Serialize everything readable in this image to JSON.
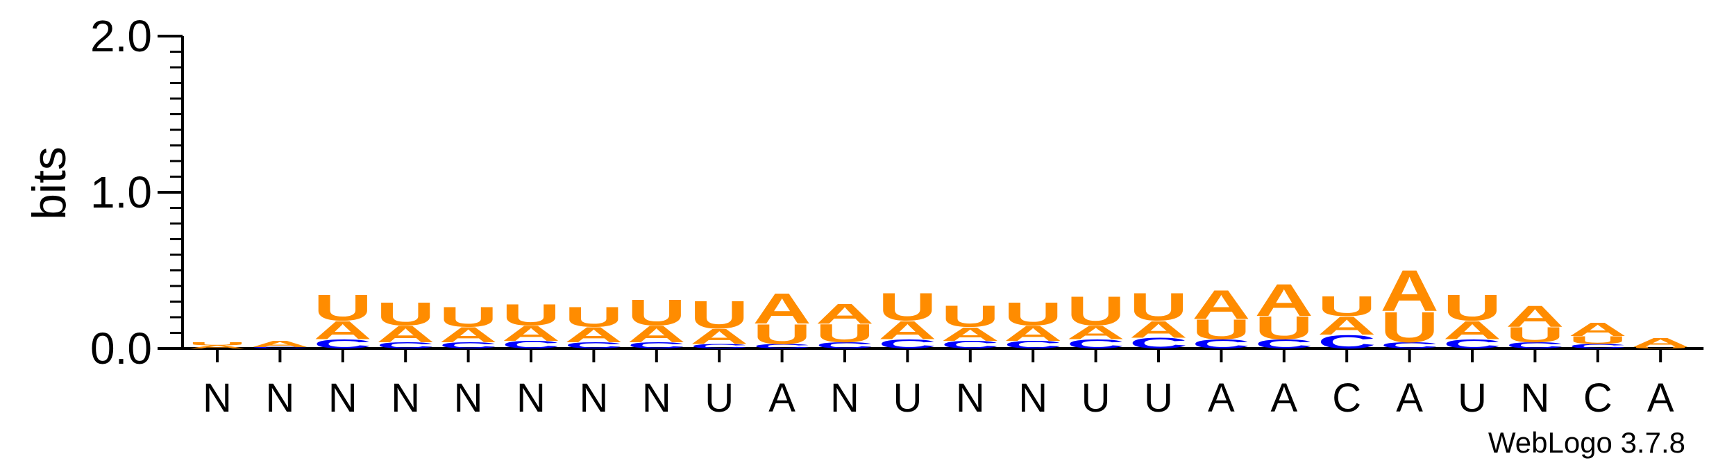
{
  "chart_data": {
    "type": "sequence_logo",
    "ylabel": "bits",
    "ylim": [
      0,
      2.0
    ],
    "yticks": [
      "0.0",
      "1.0",
      "2.0"
    ],
    "credit": "WebLogo 3.7.8",
    "colors": {
      "A": "#ff8c00",
      "U": "#ff8c00",
      "C": "#0000ff",
      "G": "#00a000"
    },
    "positions": [
      {
        "label": "N",
        "stack": [
          {
            "b": "A",
            "h": 0.02
          },
          {
            "b": "U",
            "h": 0.02
          }
        ]
      },
      {
        "label": "N",
        "stack": [
          {
            "b": "C",
            "h": 0.01
          },
          {
            "b": "A",
            "h": 0.04
          }
        ]
      },
      {
        "label": "N",
        "stack": [
          {
            "b": "C",
            "h": 0.06
          },
          {
            "b": "A",
            "h": 0.12
          },
          {
            "b": "U",
            "h": 0.17
          }
        ]
      },
      {
        "label": "N",
        "stack": [
          {
            "b": "C",
            "h": 0.04
          },
          {
            "b": "A",
            "h": 0.11
          },
          {
            "b": "U",
            "h": 0.15
          }
        ]
      },
      {
        "label": "N",
        "stack": [
          {
            "b": "C",
            "h": 0.04
          },
          {
            "b": "A",
            "h": 0.1
          },
          {
            "b": "U",
            "h": 0.13
          }
        ]
      },
      {
        "label": "N",
        "stack": [
          {
            "b": "C",
            "h": 0.05
          },
          {
            "b": "A",
            "h": 0.1
          },
          {
            "b": "U",
            "h": 0.14
          }
        ]
      },
      {
        "label": "N",
        "stack": [
          {
            "b": "C",
            "h": 0.04
          },
          {
            "b": "A",
            "h": 0.1
          },
          {
            "b": "U",
            "h": 0.13
          }
        ]
      },
      {
        "label": "N",
        "stack": [
          {
            "b": "C",
            "h": 0.04
          },
          {
            "b": "A",
            "h": 0.11
          },
          {
            "b": "U",
            "h": 0.17
          }
        ]
      },
      {
        "label": "U",
        "stack": [
          {
            "b": "C",
            "h": 0.03
          },
          {
            "b": "A",
            "h": 0.1
          },
          {
            "b": "U",
            "h": 0.18
          }
        ]
      },
      {
        "label": "A",
        "stack": [
          {
            "b": "C",
            "h": 0.03
          },
          {
            "b": "U",
            "h": 0.13
          },
          {
            "b": "A",
            "h": 0.2
          }
        ]
      },
      {
        "label": "N",
        "stack": [
          {
            "b": "C",
            "h": 0.04
          },
          {
            "b": "U",
            "h": 0.12
          },
          {
            "b": "A",
            "h": 0.13
          }
        ]
      },
      {
        "label": "U",
        "stack": [
          {
            "b": "C",
            "h": 0.06
          },
          {
            "b": "A",
            "h": 0.12
          },
          {
            "b": "U",
            "h": 0.18
          }
        ]
      },
      {
        "label": "N",
        "stack": [
          {
            "b": "C",
            "h": 0.05
          },
          {
            "b": "A",
            "h": 0.09
          },
          {
            "b": "U",
            "h": 0.14
          }
        ]
      },
      {
        "label": "N",
        "stack": [
          {
            "b": "C",
            "h": 0.05
          },
          {
            "b": "A",
            "h": 0.1
          },
          {
            "b": "U",
            "h": 0.15
          }
        ]
      },
      {
        "label": "U",
        "stack": [
          {
            "b": "C",
            "h": 0.06
          },
          {
            "b": "A",
            "h": 0.09
          },
          {
            "b": "U",
            "h": 0.19
          }
        ]
      },
      {
        "label": "U",
        "stack": [
          {
            "b": "C",
            "h": 0.07
          },
          {
            "b": "A",
            "h": 0.11
          },
          {
            "b": "U",
            "h": 0.18
          }
        ]
      },
      {
        "label": "A",
        "stack": [
          {
            "b": "C",
            "h": 0.06
          },
          {
            "b": "U",
            "h": 0.13
          },
          {
            "b": "A",
            "h": 0.19
          }
        ]
      },
      {
        "label": "A",
        "stack": [
          {
            "b": "C",
            "h": 0.06
          },
          {
            "b": "U",
            "h": 0.15
          },
          {
            "b": "A",
            "h": 0.21
          }
        ]
      },
      {
        "label": "C",
        "stack": [
          {
            "b": "C",
            "h": 0.09
          },
          {
            "b": "A",
            "h": 0.12
          },
          {
            "b": "U",
            "h": 0.13
          }
        ]
      },
      {
        "label": "A",
        "stack": [
          {
            "b": "C",
            "h": 0.04
          },
          {
            "b": "U",
            "h": 0.2
          },
          {
            "b": "A",
            "h": 0.27
          }
        ]
      },
      {
        "label": "U",
        "stack": [
          {
            "b": "C",
            "h": 0.06
          },
          {
            "b": "A",
            "h": 0.12
          },
          {
            "b": "U",
            "h": 0.17
          }
        ]
      },
      {
        "label": "N",
        "stack": [
          {
            "b": "C",
            "h": 0.04
          },
          {
            "b": "U",
            "h": 0.1
          },
          {
            "b": "A",
            "h": 0.14
          }
        ]
      },
      {
        "label": "C",
        "stack": [
          {
            "b": "C",
            "h": 0.03
          },
          {
            "b": "U",
            "h": 0.05
          },
          {
            "b": "A",
            "h": 0.09
          }
        ]
      },
      {
        "label": "A",
        "stack": [
          {
            "b": "U",
            "h": 0.01
          },
          {
            "b": "A",
            "h": 0.06
          }
        ]
      }
    ]
  }
}
